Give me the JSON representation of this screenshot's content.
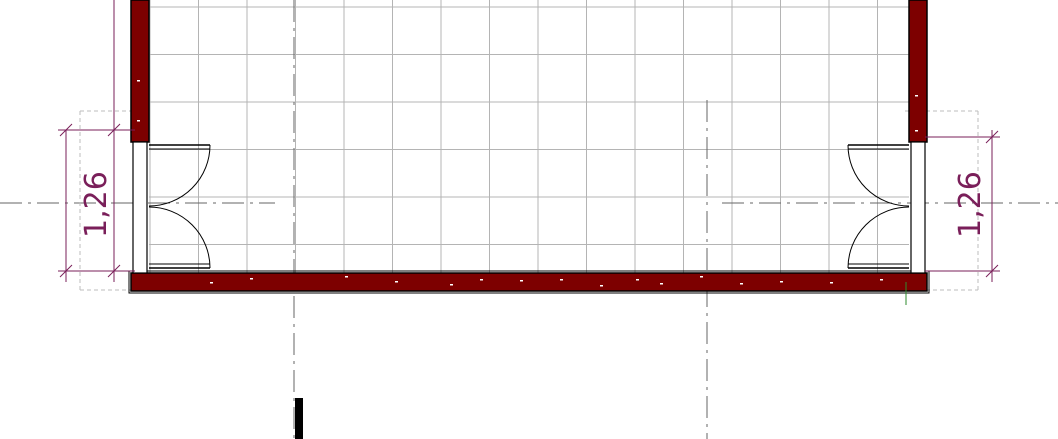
{
  "colors": {
    "background": "#ffffff",
    "grid": "#b4b4b4",
    "wall_fill": "#7d0000",
    "outline": "#000000",
    "dimension": "#7a1f5a",
    "axis": "#666666",
    "origin_marker": "#2e8b2e"
  },
  "dimensions": {
    "left": "1,26",
    "right": "1,26"
  },
  "icons": [
    "door-swing-icon",
    "axis-line-icon",
    "origin-marker-icon"
  ]
}
